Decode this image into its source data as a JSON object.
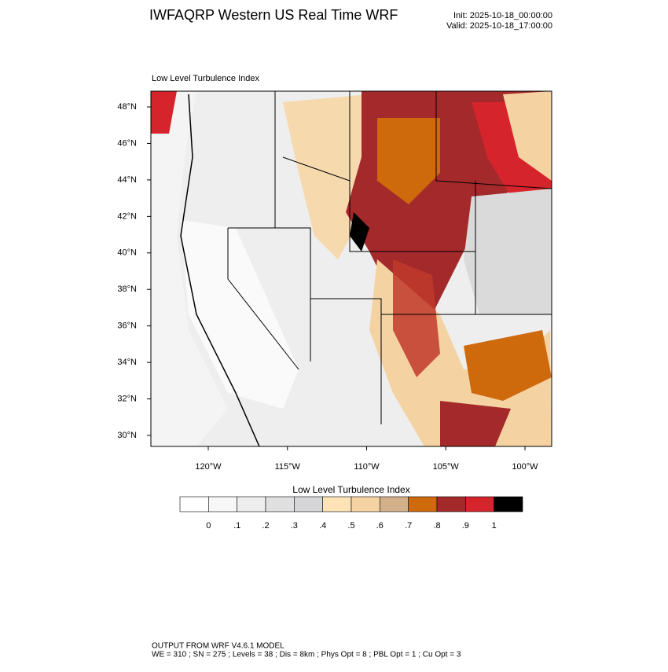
{
  "header": {
    "title": "IWFAQRP Western US Real Time WRF",
    "init": "Init: 2025-10-18_00:00:00",
    "valid": "Valid: 2025-10-18_17:00:00"
  },
  "map": {
    "subtitle": "Low Level Turbulence Index",
    "lat_labels": [
      "30°N",
      "32°N",
      "34°N",
      "36°N",
      "38°N",
      "40°N",
      "42°N",
      "44°N",
      "46°N",
      "48°N"
    ],
    "lon_labels": [
      "120°W",
      "115°W",
      "110°W",
      "105°W",
      "100°W"
    ]
  },
  "colorbar": {
    "title": "Low Level Turbulence Index",
    "colors": [
      "#ffffff",
      "#f7f7f7",
      "#eeeeee",
      "#e0e0e0",
      "#d6d6d8",
      "#fde3b6",
      "#f5d2a2",
      "#d2b08a",
      "#cf6a0c",
      "#a4292b",
      "#d5242c",
      "#000000"
    ],
    "labels": [
      "0",
      ".1",
      ".2",
      ".3",
      ".4",
      ".5",
      ".6",
      ".7",
      ".8",
      ".9",
      "1"
    ]
  },
  "footer": {
    "line1": "OUTPUT FROM WRF V4.6.1 MODEL",
    "line2": "WE = 310 ; SN = 275 ; Levels = 38 ; Dis = 8km ; Phys Opt = 8 ; PBL Opt = 1 ; Cu Opt = 3"
  }
}
